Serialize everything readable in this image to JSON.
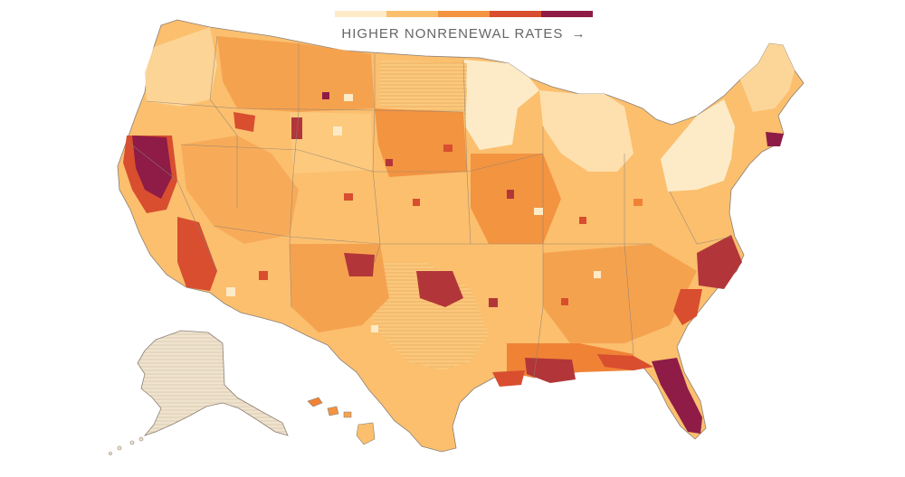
{
  "legend": {
    "label": "HIGHER NONRENEWAL RATES",
    "arrow": "→",
    "colors": [
      "#fdebc8",
      "#fbbf6e",
      "#f39440",
      "#d84e2f",
      "#8e1c46"
    ]
  },
  "map": {
    "border_color": "#8a7f76",
    "no_data_color": "#efe3cf",
    "highest_rate_regions": [
      "California",
      "Florida",
      "Louisiana",
      "North Carolina",
      "Massachusetts",
      "Oklahoma"
    ],
    "lowest_rate_regions": [
      "Minnesota",
      "New York",
      "Pennsylvania",
      "Michigan"
    ]
  }
}
